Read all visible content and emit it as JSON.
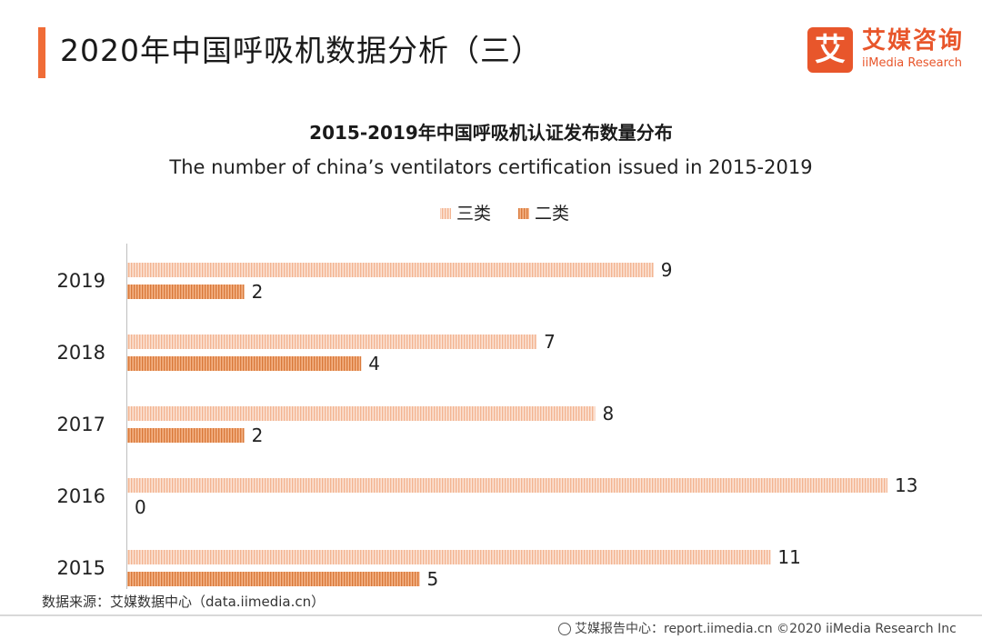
{
  "header": {
    "title": "2020年中国呼吸机数据分析（三）",
    "logo_mark": "艾",
    "logo_cn": "艾媒咨询",
    "logo_en": "iiMedia Research",
    "accent_color": "#f06c37"
  },
  "chart_data": {
    "type": "bar",
    "orientation": "horizontal",
    "title": "2015-2019年中国呼吸机认证发布数量分布",
    "subtitle": "The number of china’s ventilators certification issued in 2015-2019",
    "categories": [
      "2019",
      "2018",
      "2017",
      "2016",
      "2015"
    ],
    "series": [
      {
        "name": "三类",
        "values": [
          9,
          7,
          8,
          13,
          11
        ],
        "color": "#f6c4a7"
      },
      {
        "name": "二类",
        "values": [
          2,
          4,
          2,
          0,
          5
        ],
        "color": "#e38a4c"
      }
    ],
    "xlim": [
      0,
      13
    ],
    "legend": "top-center",
    "grid": false
  },
  "footer": {
    "source": "数据来源：艾媒数据中心（data.iimedia.cn）",
    "copyright": "艾媒报告中心：report.iimedia.cn  ©2020  iiMedia Research  Inc"
  }
}
